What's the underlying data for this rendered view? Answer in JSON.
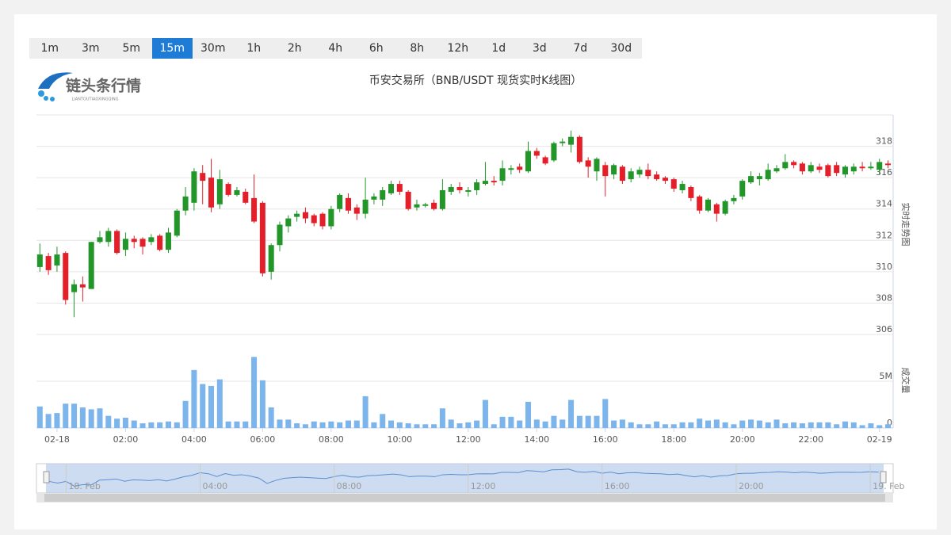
{
  "buttons": [
    "1m",
    "3m",
    "5m",
    "15m",
    "30m",
    "1h",
    "2h",
    "4h",
    "6h",
    "8h",
    "12h",
    "1d",
    "3d",
    "7d",
    "30d"
  ],
  "active_button": "15m",
  "logo": {
    "text": "链头条行情",
    "subtext": "LIANTOUTIAOXINGQING"
  },
  "chart_data": {
    "type": "candlestick",
    "title": "币安交易所（BNB/USDT 现货实时K线图）",
    "ylabel": "实时走势图",
    "y2label": "成交量",
    "up_color": "#23962a",
    "down_color": "#e3202a",
    "volume_color": "#7cb5ec",
    "grid": true,
    "x": [
      -0.5,
      -0.25,
      0,
      0.25,
      0.5,
      0.75,
      1,
      1.25,
      1.5,
      1.75,
      2,
      2.25,
      2.5,
      2.75,
      3,
      3.25,
      3.5,
      3.75,
      4,
      4.25,
      4.5,
      4.75,
      5,
      5.25,
      5.5,
      5.75,
      6,
      6.25,
      6.5,
      6.75,
      7,
      7.25,
      7.5,
      7.75,
      8,
      8.25,
      8.5,
      8.75,
      9,
      9.25,
      9.5,
      9.75,
      10,
      10.25,
      10.5,
      10.75,
      11,
      11.25,
      11.5,
      11.75,
      12,
      12.25,
      12.5,
      12.75,
      13,
      13.25,
      13.5,
      13.75,
      14,
      14.25,
      14.5,
      14.75,
      15,
      15.25,
      15.5,
      15.75,
      16,
      16.25,
      16.5,
      16.75,
      17,
      17.25,
      17.5,
      17.75,
      18,
      18.25,
      18.5,
      18.75,
      19,
      19.25,
      19.5,
      19.75,
      20,
      20.25,
      20.5,
      20.75,
      21,
      21.25,
      21.5,
      21.75,
      22,
      22.25,
      22.5,
      22.75,
      23,
      23.25,
      23.5,
      23.75,
      24,
      24.25
    ],
    "open": [
      310.3,
      311.0,
      310.4,
      311.2,
      308.7,
      309.2,
      308.9,
      311.9,
      311.9,
      312.6,
      311.4,
      312.1,
      312.1,
      311.9,
      312.3,
      311.4,
      312.3,
      313.9,
      314.4,
      316.3,
      316.0,
      314.3,
      315.6,
      314.9,
      315.1,
      314.7,
      314.4,
      310.0,
      311.7,
      312.9,
      313.5,
      313.8,
      313.6,
      313.7,
      312.9,
      314.0,
      314.7,
      314.1,
      313.7,
      314.6,
      314.6,
      315.0,
      315.6,
      315.1,
      314.1,
      314.2,
      314.4,
      314.0,
      315.1,
      315.4,
      315.1,
      315.2,
      315.6,
      315.8,
      315.8,
      316.5,
      316.7,
      316.4,
      317.7,
      317.3,
      317.1,
      318.2,
      318.1,
      318.6,
      317.1,
      316.4,
      316.8,
      316.2,
      316.7,
      315.9,
      316.2,
      316.5,
      316.2,
      316.0,
      315.9,
      315.2,
      315.4,
      314.8,
      313.9,
      314.3,
      313.7,
      314.5,
      314.8,
      315.7,
      315.9,
      315.9,
      316.4,
      316.6,
      317.0,
      316.9,
      316.4,
      316.7,
      316.8,
      316.8,
      316.2,
      316.4,
      316.7,
      316.6,
      316.5,
      316.9
    ],
    "high": [
      311.8,
      311.2,
      311.6,
      311.3,
      309.5,
      309.7,
      311.9,
      312.6,
      312.8,
      312.7,
      312.5,
      312.3,
      312.2,
      312.4,
      312.4,
      312.8,
      314.0,
      315.4,
      316.6,
      316.8,
      317.2,
      316.5,
      315.7,
      315.4,
      315.3,
      316.2,
      314.5,
      311.8,
      313.2,
      313.6,
      313.9,
      314.1,
      313.7,
      313.8,
      314.2,
      315.0,
      315.0,
      314.3,
      316.0,
      315.0,
      315.4,
      315.8,
      315.8,
      315.2,
      314.6,
      314.4,
      314.6,
      315.9,
      315.6,
      315.7,
      315.4,
      315.9,
      317.0,
      316.1,
      317.1,
      316.8,
      316.9,
      318.3,
      317.9,
      317.4,
      318.3,
      318.5,
      319.0,
      318.7,
      317.3,
      317.3,
      317.0,
      316.9,
      316.8,
      316.6,
      316.7,
      316.9,
      316.4,
      316.1,
      316.0,
      315.8,
      315.5,
      314.9,
      314.7,
      314.4,
      314.6,
      314.9,
      315.9,
      316.4,
      316.3,
      316.9,
      316.8,
      317.5,
      317.1,
      317.0,
      317.0,
      316.9,
      316.9,
      317.0,
      316.8,
      316.9,
      317.0,
      317.0,
      317.2,
      317.1
    ],
    "low": [
      310.0,
      309.8,
      310.0,
      307.9,
      307.1,
      308.1,
      308.9,
      311.8,
      311.6,
      311.1,
      311.0,
      311.5,
      311.1,
      311.7,
      311.3,
      311.2,
      312.2,
      313.6,
      313.9,
      314.3,
      313.8,
      314.0,
      314.8,
      314.8,
      314.3,
      313.1,
      309.7,
      309.5,
      311.3,
      312.5,
      313.2,
      313.1,
      312.9,
      312.7,
      312.7,
      313.8,
      313.7,
      313.3,
      313.4,
      314.3,
      314.2,
      314.9,
      314.9,
      313.9,
      313.9,
      314.1,
      313.9,
      313.9,
      314.9,
      315.0,
      314.8,
      314.9,
      315.5,
      315.5,
      315.5,
      316.2,
      316.3,
      316.3,
      317.2,
      316.8,
      317.0,
      318.0,
      317.6,
      316.9,
      316.0,
      315.8,
      314.8,
      315.9,
      315.6,
      315.7,
      316.0,
      315.9,
      315.8,
      315.6,
      315.1,
      315.0,
      314.5,
      313.7,
      313.8,
      313.2,
      313.6,
      314.3,
      314.6,
      315.6,
      315.5,
      315.8,
      316.3,
      316.5,
      316.6,
      316.2,
      316.3,
      316.3,
      316.0,
      316.1,
      316.0,
      316.2,
      316.4,
      316.5,
      316.2,
      316.6
    ],
    "close": [
      311.1,
      310.1,
      311.1,
      308.2,
      309.2,
      309.0,
      311.9,
      312.2,
      312.6,
      311.2,
      312.1,
      311.9,
      311.6,
      312.2,
      311.4,
      312.5,
      313.9,
      314.8,
      316.4,
      315.8,
      314.1,
      315.9,
      314.9,
      315.2,
      314.4,
      313.2,
      309.9,
      311.7,
      313.0,
      313.4,
      313.7,
      313.4,
      313.1,
      312.9,
      314.0,
      314.9,
      313.9,
      313.7,
      314.6,
      314.8,
      315.2,
      315.6,
      315.1,
      314.0,
      314.3,
      314.3,
      314.0,
      315.2,
      315.4,
      315.2,
      315.2,
      315.7,
      315.8,
      315.7,
      316.6,
      316.6,
      316.5,
      317.7,
      317.4,
      316.9,
      318.2,
      318.3,
      318.6,
      317.0,
      316.7,
      317.2,
      316.1,
      316.8,
      315.8,
      316.4,
      316.5,
      316.1,
      315.9,
      315.8,
      315.3,
      315.6,
      314.7,
      313.9,
      314.6,
      313.7,
      314.5,
      314.7,
      315.8,
      316.1,
      316.1,
      316.5,
      316.6,
      317.0,
      316.8,
      316.4,
      316.8,
      316.5,
      316.1,
      316.3,
      316.7,
      316.7,
      316.6,
      316.7,
      317.0,
      316.8
    ],
    "volume": [
      2300000,
      1500000,
      1600000,
      2600000,
      2600000,
      2200000,
      2000000,
      2100000,
      1300000,
      1000000,
      1100000,
      800000,
      500000,
      600000,
      600000,
      700000,
      600000,
      2900000,
      6200000,
      4700000,
      4500000,
      5200000,
      700000,
      700000,
      700000,
      7600000,
      5100000,
      2200000,
      900000,
      900000,
      500000,
      400000,
      700000,
      600000,
      700000,
      600000,
      800000,
      800000,
      3400000,
      600000,
      1500000,
      800000,
      600000,
      500000,
      400000,
      400000,
      400000,
      2100000,
      900000,
      500000,
      600000,
      800000,
      3000000,
      400000,
      1200000,
      1200000,
      800000,
      2800000,
      900000,
      700000,
      1300000,
      900000,
      3000000,
      1300000,
      1300000,
      1300000,
      3100000,
      800000,
      900000,
      600000,
      400000,
      400000,
      700000,
      400000,
      400000,
      600000,
      600000,
      1000000,
      800000,
      900000,
      600000,
      400000,
      800000,
      900000,
      800000,
      600000,
      900000,
      500000,
      600000,
      500000,
      600000,
      600000,
      600000,
      400000,
      700000,
      600000,
      300000,
      500000,
      300000,
      400000
    ],
    "xlim": [
      -0.6,
      24.4
    ],
    "xticks": [
      {
        "value": 0,
        "label": "02-18"
      },
      {
        "value": 2,
        "label": "02:00"
      },
      {
        "value": 4,
        "label": "04:00"
      },
      {
        "value": 6,
        "label": "06:00"
      },
      {
        "value": 8,
        "label": "08:00"
      },
      {
        "value": 10,
        "label": "10:00"
      },
      {
        "value": 12,
        "label": "12:00"
      },
      {
        "value": 14,
        "label": "14:00"
      },
      {
        "value": 16,
        "label": "16:00"
      },
      {
        "value": 18,
        "label": "18:00"
      },
      {
        "value": 20,
        "label": "20:00"
      },
      {
        "value": 22,
        "label": "22:00"
      },
      {
        "value": 24,
        "label": "02-19"
      }
    ],
    "ylim": [
      306,
      320
    ],
    "yticks": [
      306,
      308,
      310,
      312,
      314,
      316,
      318
    ],
    "y2lim": [
      0,
      10000000
    ],
    "y2ticks": [
      0,
      {
        "value": 5000000,
        "label": "5M"
      }
    ]
  },
  "navigator": {
    "xticks": [
      {
        "value": 0,
        "label": "18. Feb"
      },
      {
        "value": 4,
        "label": "04:00"
      },
      {
        "value": 8,
        "label": "08:00"
      },
      {
        "value": 12,
        "label": "12:00"
      },
      {
        "value": 16,
        "label": "16:00"
      },
      {
        "value": 20,
        "label": "20:00"
      },
      {
        "value": 24,
        "label": "19. Feb"
      }
    ]
  }
}
